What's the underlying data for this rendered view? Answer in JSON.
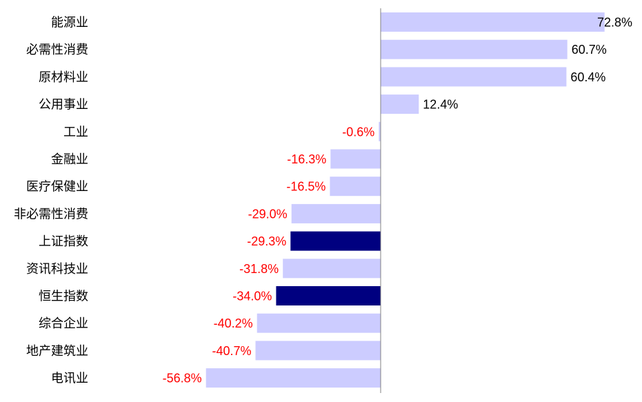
{
  "chart_data": {
    "type": "bar",
    "orientation": "horizontal",
    "title": "",
    "xlabel": "",
    "ylabel": "",
    "xlim": [
      -91,
      78
    ],
    "grid": false,
    "legend": "none",
    "value_suffix": "%",
    "colors": {
      "sector": "#ccccff",
      "index": "#000080",
      "positive_label": "#000000",
      "negative_label": "#ff0000",
      "zero_line": "#808080"
    },
    "categories": [
      "能源业",
      "必需性消费",
      "原材料业",
      "公用事业",
      "工业",
      "金融业",
      "医疗保健业",
      "非必需性消费",
      "上证指数",
      "资讯科技业",
      "恒生指数",
      "综合企业",
      "地产建筑业",
      "电讯业"
    ],
    "values": [
      72.8,
      60.7,
      60.4,
      12.4,
      -0.6,
      -16.3,
      -16.5,
      -29.0,
      -29.3,
      -31.8,
      -34.0,
      -40.2,
      -40.7,
      -56.8
    ],
    "highlight": [
      false,
      false,
      false,
      false,
      false,
      false,
      false,
      false,
      true,
      false,
      true,
      false,
      false,
      false
    ]
  }
}
